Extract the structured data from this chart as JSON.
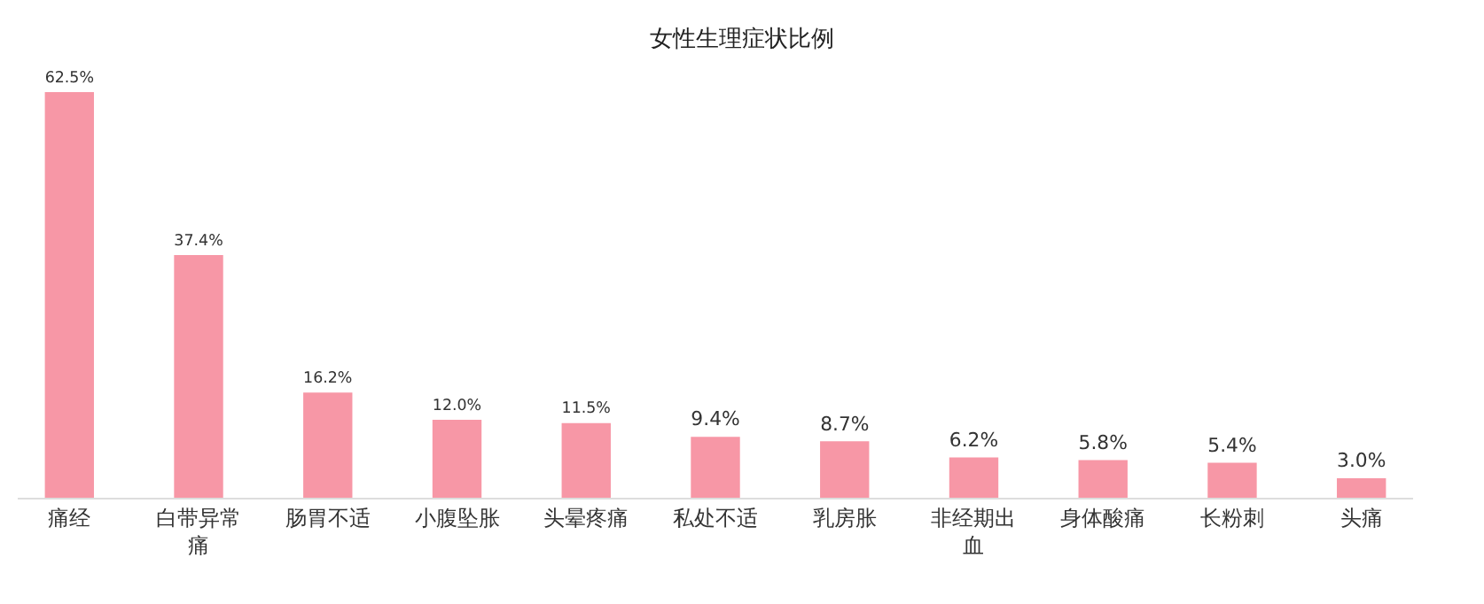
{
  "chart_data": {
    "type": "bar",
    "title": "女性生理症状比例",
    "categories": [
      "痛经",
      "白带异常痛",
      "肠胃不适",
      "小腹坠胀",
      "头晕疼痛",
      "私处不适",
      "乳房胀",
      "非经期出血",
      "身体酸痛",
      "长粉刺",
      "头痛"
    ],
    "values": [
      62.5,
      37.4,
      16.2,
      12.0,
      11.5,
      9.4,
      8.7,
      6.2,
      5.8,
      5.4,
      3.0
    ],
    "value_labels": [
      "62.5%",
      "37.4%",
      "16.2%",
      "12.0%",
      "11.5%",
      "9.4%",
      "8.7%",
      "6.2%",
      "5.8%",
      "5.4%",
      "3.0%"
    ],
    "color": "#f797a6",
    "grid": false,
    "legend": false
  }
}
